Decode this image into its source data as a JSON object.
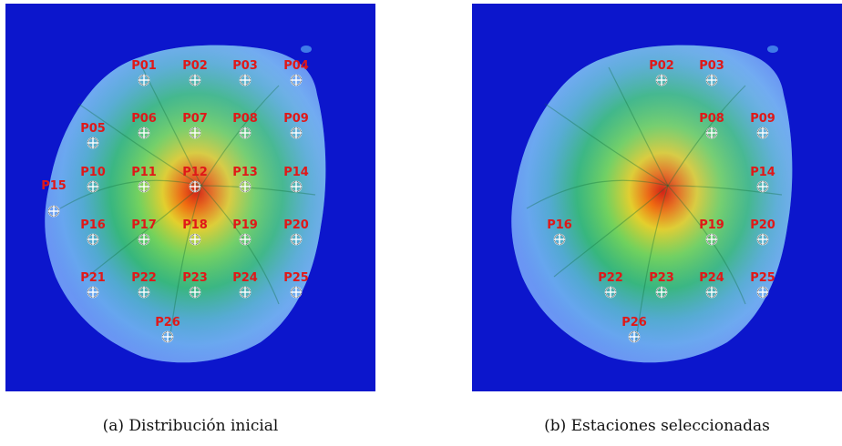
{
  "figure": {
    "panels": [
      {
        "id": "a",
        "caption": "(a) Distribución inicial",
        "stations": [
          {
            "label": "P01"
          },
          {
            "label": "P02"
          },
          {
            "label": "P03"
          },
          {
            "label": "P04"
          },
          {
            "label": "P05"
          },
          {
            "label": "P06"
          },
          {
            "label": "P07"
          },
          {
            "label": "P08"
          },
          {
            "label": "P09"
          },
          {
            "label": "P10"
          },
          {
            "label": "P11"
          },
          {
            "label": "P12"
          },
          {
            "label": "P13"
          },
          {
            "label": "P14"
          },
          {
            "label": "P15"
          },
          {
            "label": "P16"
          },
          {
            "label": "P17"
          },
          {
            "label": "P18"
          },
          {
            "label": "P19"
          },
          {
            "label": "P20"
          },
          {
            "label": "P21"
          },
          {
            "label": "P22"
          },
          {
            "label": "P23"
          },
          {
            "label": "P24"
          },
          {
            "label": "P25"
          },
          {
            "label": "P26"
          }
        ]
      },
      {
        "id": "b",
        "caption": "(b) Estaciones seleccionadas",
        "stations": [
          {
            "label": "P02"
          },
          {
            "label": "P03"
          },
          {
            "label": "P08"
          },
          {
            "label": "P09"
          },
          {
            "label": "P14"
          },
          {
            "label": "P16"
          },
          {
            "label": "P19"
          },
          {
            "label": "P20"
          },
          {
            "label": "P22"
          },
          {
            "label": "P23"
          },
          {
            "label": "P24"
          },
          {
            "label": "P25"
          },
          {
            "label": "P26"
          }
        ]
      }
    ],
    "colors": {
      "sea": "#0c16cc",
      "label": "#e01818",
      "marker": "#ffffff"
    }
  }
}
